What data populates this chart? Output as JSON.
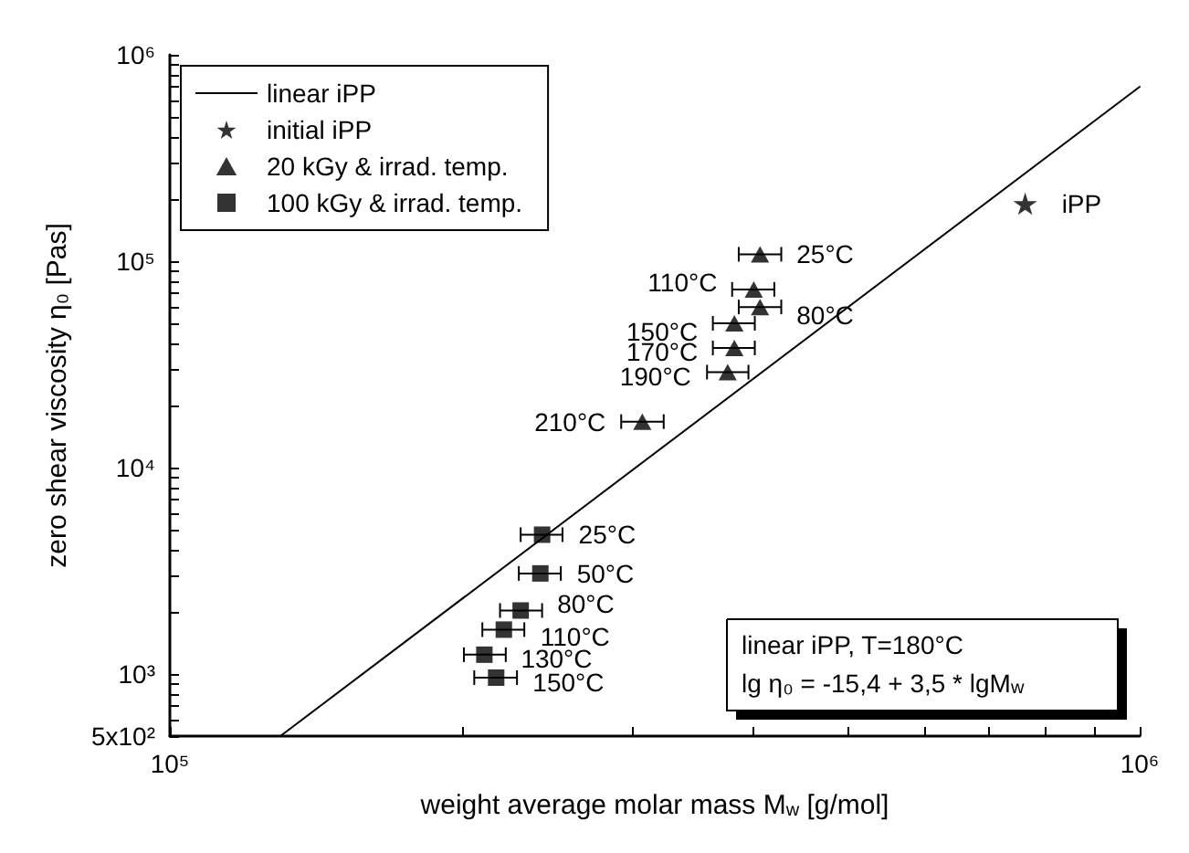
{
  "chart_data": {
    "type": "scatter",
    "xlabel": "weight average molar mass M$_{w}$ [g/mol]",
    "ylabel": "zero shear viscosity η₀ [Pas]",
    "log": "xy",
    "grid": false,
    "legend": "top left",
    "xlim": [
      100000,
      1000000
    ],
    "ylim": [
      500,
      1000000
    ],
    "xticks": [
      {
        "value": 100000,
        "label": "10⁵"
      },
      {
        "value": 200000,
        "label": null
      },
      {
        "value": 300000,
        "label": null
      },
      {
        "value": 400000,
        "label": null
      },
      {
        "value": 500000,
        "label": null
      },
      {
        "value": 600000,
        "label": null
      },
      {
        "value": 700000,
        "label": null
      },
      {
        "value": 800000,
        "label": null
      },
      {
        "value": 900000,
        "label": null
      },
      {
        "value": 1000000,
        "label": "10⁶"
      }
    ],
    "yticks": [
      {
        "value": 500,
        "label": "5x10²"
      },
      {
        "value": 600,
        "label": null
      },
      {
        "value": 700,
        "label": null
      },
      {
        "value": 800,
        "label": null
      },
      {
        "value": 900,
        "label": null
      },
      {
        "value": 1000,
        "label": "10³"
      },
      {
        "value": 2000,
        "label": null
      },
      {
        "value": 3000,
        "label": null
      },
      {
        "value": 4000,
        "label": null
      },
      {
        "value": 5000,
        "label": null
      },
      {
        "value": 6000,
        "label": null
      },
      {
        "value": 7000,
        "label": null
      },
      {
        "value": 8000,
        "label": null
      },
      {
        "value": 9000,
        "label": null
      },
      {
        "value": 10000,
        "label": "10⁴"
      },
      {
        "value": 20000,
        "label": null
      },
      {
        "value": 30000,
        "label": null
      },
      {
        "value": 40000,
        "label": null
      },
      {
        "value": 50000,
        "label": null
      },
      {
        "value": 60000,
        "label": null
      },
      {
        "value": 70000,
        "label": null
      },
      {
        "value": 80000,
        "label": null
      },
      {
        "value": 90000,
        "label": null
      },
      {
        "value": 100000,
        "label": "10⁵"
      },
      {
        "value": 200000,
        "label": null
      },
      {
        "value": 300000,
        "label": null
      },
      {
        "value": 400000,
        "label": null
      },
      {
        "value": 500000,
        "label": null
      },
      {
        "value": 600000,
        "label": null
      },
      {
        "value": 700000,
        "label": null
      },
      {
        "value": 800000,
        "label": null
      },
      {
        "value": 900000,
        "label": null
      },
      {
        "value": 1000000,
        "label": "10⁶"
      }
    ],
    "series": [
      {
        "name": "linear iPP",
        "type": "line",
        "marker": "none",
        "line_style": "solid",
        "color": "#000000",
        "x": [
          130000,
          1000000
        ],
        "values": [
          500,
          700000
        ]
      },
      {
        "name": "initial iPP",
        "marker": "star",
        "color": "#000000",
        "x": [
          762000
        ],
        "values": [
          190000
        ]
      },
      {
        "name": "20 kGy & irrad. temp.",
        "marker": "triangle",
        "color": "#000000",
        "x": [
          406000,
          406000,
          400000,
          382000,
          382000,
          376000,
          307000
        ],
        "values": [
          108000,
          60000,
          73000,
          50000,
          38000,
          29000,
          16700
        ],
        "xerrors": [
          [
            386000,
            427000
          ],
          [
            386000,
            427000
          ],
          [
            380000,
            420000
          ],
          [
            363000,
            401000
          ],
          [
            363000,
            401000
          ],
          [
            358000,
            395000
          ],
          [
            292000,
            323000
          ]
        ]
      },
      {
        "name": "100 kGy & irrad. temp.",
        "marker": "square",
        "color": "#000000",
        "x": [
          242000,
          241000,
          230000,
          221000,
          211000,
          217000
        ],
        "values": [
          4730,
          3070,
          2030,
          1640,
          1240,
          960
        ],
        "xerrors": [
          [
            230000,
            254000
          ],
          [
            229000,
            253000
          ],
          [
            219000,
            242000
          ],
          [
            210000,
            232000
          ],
          [
            201000,
            222000
          ],
          [
            206000,
            228000
          ]
        ]
      }
    ],
    "annotations": [
      {
        "text": "iPP",
        "x": 762000,
        "y": 190000
      },
      {
        "text": "25°C",
        "x": 406000,
        "y": 108000
      },
      {
        "text": "80°C",
        "x": 406000,
        "y": 60000
      },
      {
        "text": "110°C",
        "x": 400000,
        "y": 73000
      },
      {
        "text": "150°C",
        "x": 382000,
        "y": 50000
      },
      {
        "text": "170°C",
        "x": 382000,
        "y": 38000
      },
      {
        "text": "190°C",
        "x": 376000,
        "y": 29000
      },
      {
        "text": "210°C",
        "x": 307000,
        "y": 16700
      },
      {
        "text": "25°C",
        "x": 242000,
        "y": 4730
      },
      {
        "text": "50°C",
        "x": 241000,
        "y": 3070
      },
      {
        "text": "80°C",
        "x": 230000,
        "y": 2030
      },
      {
        "text": "110°C",
        "x": 221000,
        "y": 1640
      },
      {
        "text": "130°C",
        "x": 211000,
        "y": 1240
      },
      {
        "text": "150°C",
        "x": 217000,
        "y": 960
      },
      "linear iPP, T=180°C",
      "lg η₀ = -15,4 + 3,5 * lgM$_{w}$"
    ]
  }
}
